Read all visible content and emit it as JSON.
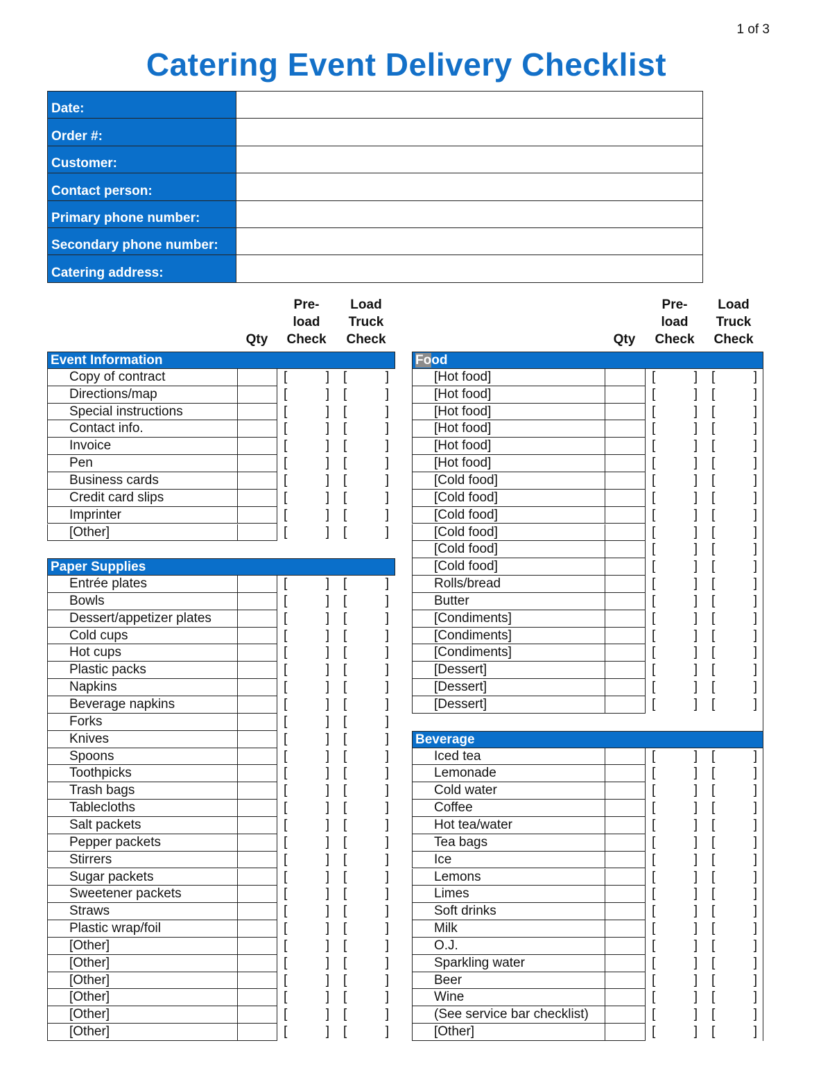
{
  "page_indicator": "1 of 3",
  "title": "Catering Event Delivery Checklist",
  "info_fields": [
    "Date:",
    "Order #:",
    "Customer:",
    "Contact person:",
    "Primary phone number:",
    "Secondary phone number:",
    "Catering address:"
  ],
  "columns": {
    "qty": "Qty",
    "preload": [
      "Pre-",
      "load",
      "Check"
    ],
    "loadtruck": [
      "Load",
      "Truck",
      "Check"
    ]
  },
  "checkbox": {
    "open": "[",
    "close": "]"
  },
  "colors": {
    "header_blue": "#0a6fca",
    "title_blue": "#1370c8"
  },
  "left_sections": [
    {
      "title": "Event Information",
      "items": [
        "Copy of contract",
        "Directions/map",
        "Special instructions",
        "Contact info.",
        "Invoice",
        "Pen",
        "Business cards",
        "Credit card slips",
        "Imprinter",
        "[Other]"
      ]
    },
    {
      "title": "Paper Supplies",
      "items": [
        "Entrée plates",
        "Bowls",
        "Dessert/appetizer plates",
        "Cold cups",
        "Hot cups",
        "Plastic packs",
        "Napkins",
        "Beverage napkins",
        "Forks",
        "Knives",
        "Spoons",
        "Toothpicks",
        "Trash bags",
        "Tablecloths",
        "Salt packets",
        "Pepper packets",
        "Stirrers",
        "Sugar packets",
        "Sweetener packets",
        "Straws",
        "Plastic wrap/foil",
        "[Other]",
        "[Other]",
        "[Other]",
        "[Other]",
        "[Other]",
        "[Other]"
      ]
    }
  ],
  "right_sections": [
    {
      "title": "Food",
      "items": [
        "[Hot food]",
        "[Hot food]",
        "[Hot food]",
        "[Hot food]",
        "[Hot food]",
        "[Hot food]",
        "[Cold food]",
        "[Cold food]",
        "[Cold food]",
        "[Cold food]",
        "[Cold food]",
        "[Cold food]",
        "Rolls/bread",
        "Butter",
        "[Condiments]",
        "[Condiments]",
        "[Condiments]",
        "[Dessert]",
        "[Dessert]",
        "[Dessert]"
      ]
    },
    {
      "title": "Beverage",
      "items": [
        "Iced tea",
        "Lemonade",
        "Cold water",
        "Coffee",
        "Hot tea/water",
        "Tea bags",
        "Ice",
        "Lemons",
        "Limes",
        "Soft drinks",
        "Milk",
        "O.J.",
        "Sparkling water",
        "Beer",
        "Wine",
        "(See service bar checklist)",
        "[Other]"
      ]
    }
  ]
}
